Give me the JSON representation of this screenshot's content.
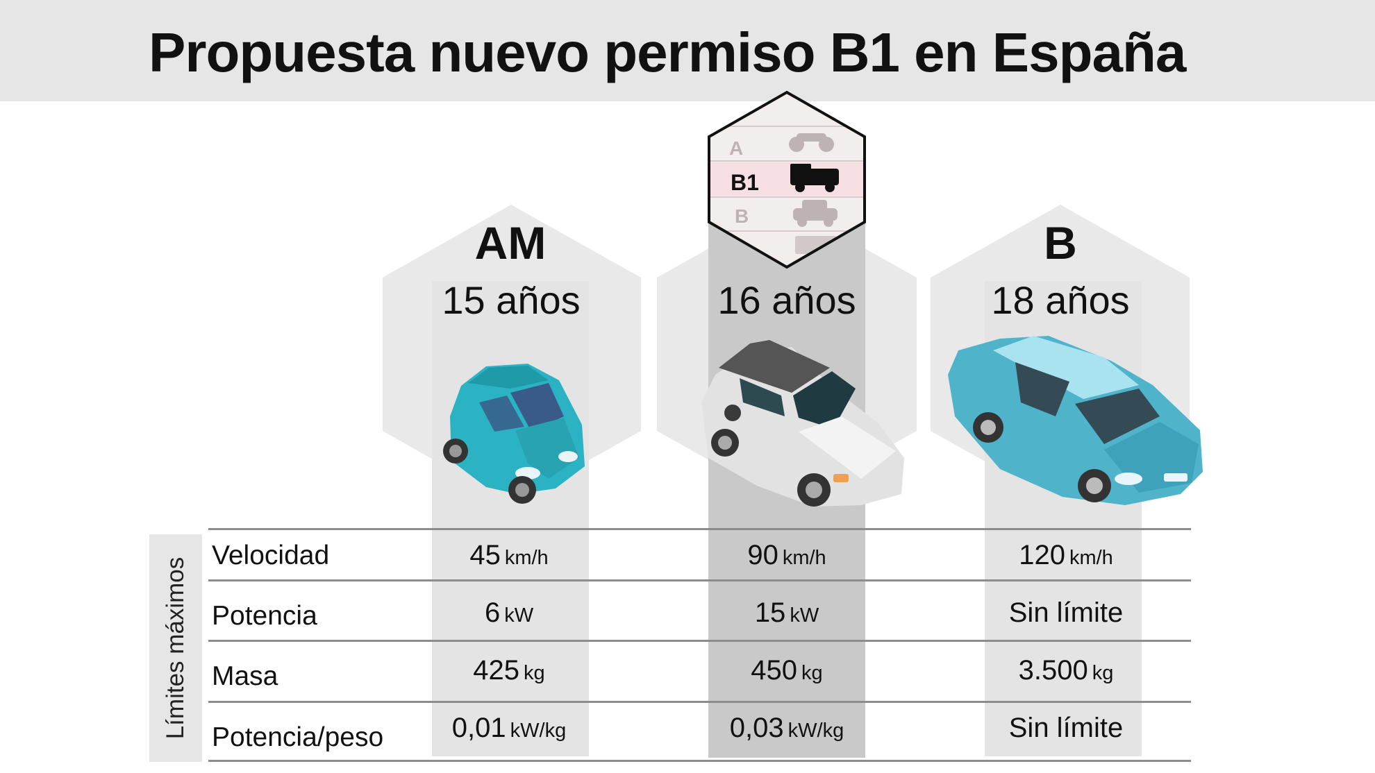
{
  "title": "Propuesta nuevo permiso B1 en España",
  "side_label": "Límites máximos",
  "license_badge": {
    "rows": [
      "A",
      "B1",
      "B"
    ],
    "highlighted": "B1"
  },
  "columns": [
    {
      "category": "AM",
      "age": "15 años"
    },
    {
      "category": "",
      "age": "16 años"
    },
    {
      "category": "B",
      "age": "18 años"
    }
  ],
  "rows": [
    {
      "label": "Velocidad",
      "values": [
        {
          "num": "45",
          "unit": "km/h"
        },
        {
          "num": "90",
          "unit": "km/h"
        },
        {
          "num": "120",
          "unit": "km/h"
        }
      ]
    },
    {
      "label": "Potencia",
      "values": [
        {
          "num": "6",
          "unit": "kW"
        },
        {
          "num": "15",
          "unit": "kW"
        },
        {
          "num": "Sin límite",
          "unit": ""
        }
      ]
    },
    {
      "label": "Masa",
      "values": [
        {
          "num": "425",
          "unit": "kg"
        },
        {
          "num": "450",
          "unit": "kg"
        },
        {
          "num": "3.500",
          "unit": "kg"
        }
      ]
    },
    {
      "label": "Potencia/peso",
      "values": [
        {
          "num": "0,01",
          "unit": "kW/kg"
        },
        {
          "num": "0,03",
          "unit": "kW/kg"
        },
        {
          "num": "Sin límite",
          "unit": ""
        }
      ]
    }
  ],
  "colors": {
    "header_bg": "#e6e6e6",
    "hexagon": "#e9e9e9",
    "column_band": "#e4e4e4",
    "center_band": "#c9c9c9",
    "teal_car": "#2cb3c3",
    "blue_car": "#4fb3c9",
    "white_car": "#e6e6e6"
  }
}
